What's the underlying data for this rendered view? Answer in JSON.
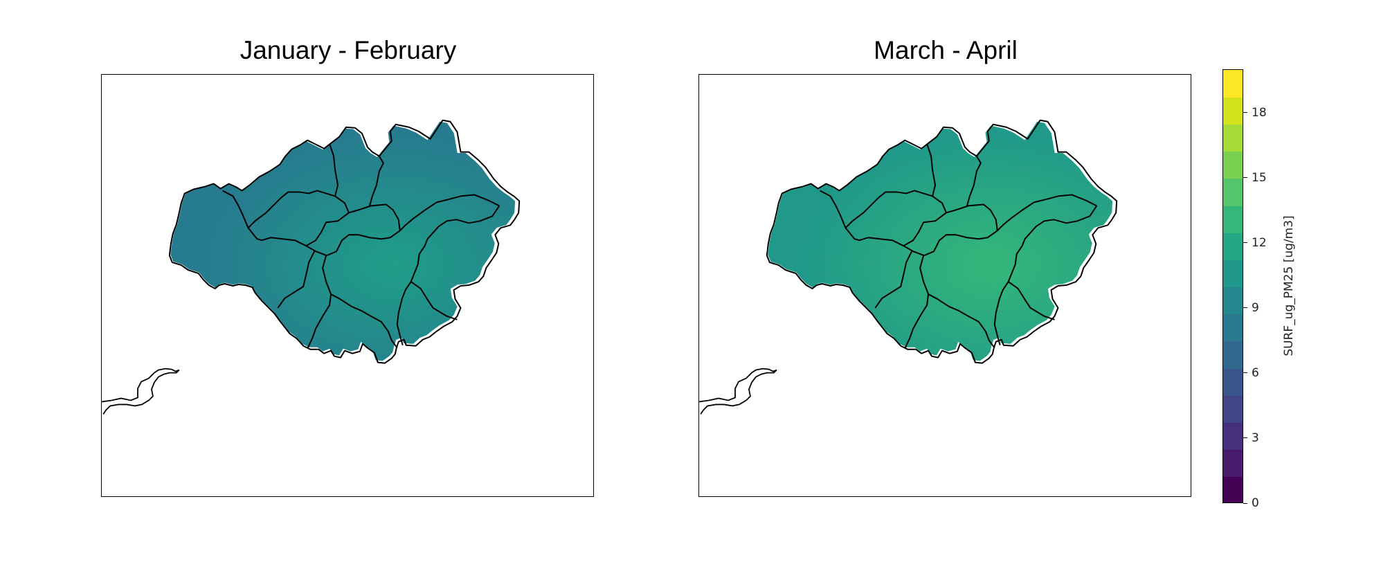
{
  "panels": [
    {
      "title": "January - February",
      "mean_level": 7.5,
      "fill_color": "#277b8e",
      "hot_color": "#1f9e89"
    },
    {
      "title": "March - April",
      "mean_level": 10.5,
      "fill_color": "#20998a",
      "hot_color": "#35b779"
    }
  ],
  "colorbar": {
    "label": "SURF_ug_PM25 [ug/m3]",
    "range": [
      0,
      20
    ],
    "ticks": [
      "0",
      "3",
      "6",
      "9",
      "12",
      "15",
      "18"
    ],
    "colormap": "viridis",
    "levels": 16
  },
  "colors": {
    "boundary": "#000000",
    "frame": "#000000"
  }
}
